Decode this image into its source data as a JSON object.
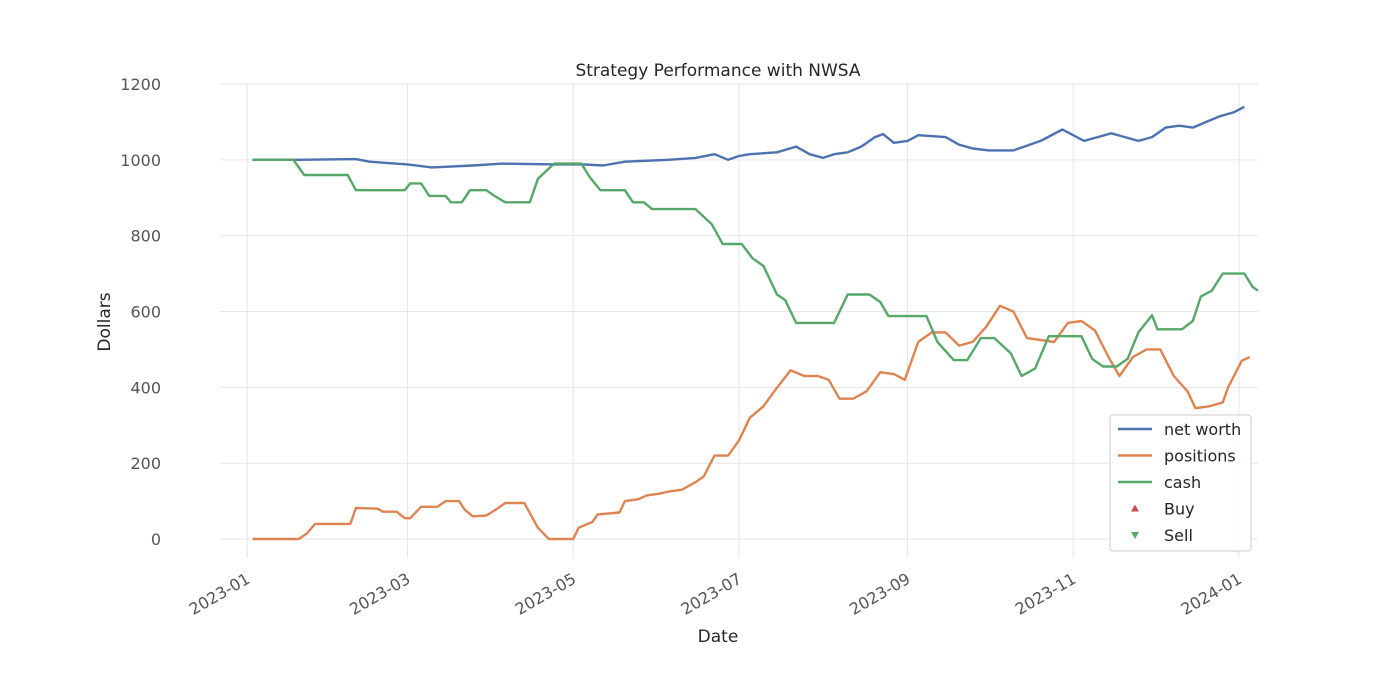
{
  "chart_data": {
    "type": "line",
    "title": "Strategy Performance with NWSA",
    "xlabel": "Date",
    "ylabel": "Dollars",
    "ylim": [
      -50,
      1200
    ],
    "xlim": [
      "2022-12-22",
      "2024-01-08"
    ],
    "yticks": [
      "0",
      "200",
      "400",
      "600",
      "800",
      "1000",
      "1200"
    ],
    "xticks": [
      "2023-01",
      "2023-03",
      "2023-05",
      "2023-07",
      "2023-09",
      "2023-11",
      "2024-01"
    ],
    "grid": true,
    "legend_position": "lower-right",
    "series": [
      {
        "name": "net worth",
        "color": "#4c72b0",
        "points": [
          [
            "2023-01-03",
            1000
          ],
          [
            "2023-01-20",
            1000
          ],
          [
            "2023-02-10",
            1002
          ],
          [
            "2023-02-15",
            995
          ],
          [
            "2023-03-01",
            988
          ],
          [
            "2023-03-10",
            980
          ],
          [
            "2023-03-25",
            985
          ],
          [
            "2023-04-05",
            990
          ],
          [
            "2023-04-25",
            988
          ],
          [
            "2023-05-05",
            988
          ],
          [
            "2023-05-12",
            985
          ],
          [
            "2023-05-20",
            995
          ],
          [
            "2023-06-05",
            1000
          ],
          [
            "2023-06-15",
            1005
          ],
          [
            "2023-06-22",
            1015
          ],
          [
            "2023-06-27",
            1000
          ],
          [
            "2023-07-01",
            1010
          ],
          [
            "2023-07-05",
            1015
          ],
          [
            "2023-07-15",
            1020
          ],
          [
            "2023-07-22",
            1035
          ],
          [
            "2023-07-27",
            1015
          ],
          [
            "2023-08-01",
            1005
          ],
          [
            "2023-08-05",
            1015
          ],
          [
            "2023-08-10",
            1020
          ],
          [
            "2023-08-15",
            1035
          ],
          [
            "2023-08-20",
            1060
          ],
          [
            "2023-08-23",
            1068
          ],
          [
            "2023-08-27",
            1045
          ],
          [
            "2023-09-01",
            1050
          ],
          [
            "2023-09-05",
            1065
          ],
          [
            "2023-09-15",
            1060
          ],
          [
            "2023-09-20",
            1040
          ],
          [
            "2023-09-25",
            1030
          ],
          [
            "2023-10-01",
            1025
          ],
          [
            "2023-10-10",
            1025
          ],
          [
            "2023-10-20",
            1050
          ],
          [
            "2023-10-28",
            1080
          ],
          [
            "2023-11-05",
            1050
          ],
          [
            "2023-11-10",
            1060
          ],
          [
            "2023-11-15",
            1070
          ],
          [
            "2023-11-20",
            1060
          ],
          [
            "2023-11-25",
            1050
          ],
          [
            "2023-11-30",
            1060
          ],
          [
            "2023-12-05",
            1085
          ],
          [
            "2023-12-10",
            1090
          ],
          [
            "2023-12-15",
            1085
          ],
          [
            "2023-12-20",
            1100
          ],
          [
            "2023-12-25",
            1115
          ],
          [
            "2023-12-30",
            1125
          ],
          [
            "2024-01-03",
            1140
          ]
        ]
      },
      {
        "name": "positions",
        "color": "#dd8452",
        "points": [
          [
            "2023-01-03",
            0
          ],
          [
            "2023-01-20",
            0
          ],
          [
            "2023-01-23",
            15
          ],
          [
            "2023-01-26",
            40
          ],
          [
            "2023-02-08",
            40
          ],
          [
            "2023-02-10",
            82
          ],
          [
            "2023-02-18",
            80
          ],
          [
            "2023-02-20",
            72
          ],
          [
            "2023-02-25",
            72
          ],
          [
            "2023-02-28",
            55
          ],
          [
            "2023-03-02",
            55
          ],
          [
            "2023-03-06",
            85
          ],
          [
            "2023-03-12",
            85
          ],
          [
            "2023-03-15",
            100
          ],
          [
            "2023-03-20",
            100
          ],
          [
            "2023-03-22",
            78
          ],
          [
            "2023-03-25",
            60
          ],
          [
            "2023-03-30",
            62
          ],
          [
            "2023-04-03",
            80
          ],
          [
            "2023-04-06",
            95
          ],
          [
            "2023-04-10",
            95
          ],
          [
            "2023-04-13",
            95
          ],
          [
            "2023-04-18",
            30
          ],
          [
            "2023-04-22",
            0
          ],
          [
            "2023-05-01",
            0
          ],
          [
            "2023-05-03",
            30
          ],
          [
            "2023-05-08",
            45
          ],
          [
            "2023-05-10",
            65
          ],
          [
            "2023-05-18",
            70
          ],
          [
            "2023-05-20",
            100
          ],
          [
            "2023-05-25",
            105
          ],
          [
            "2023-05-28",
            115
          ],
          [
            "2023-06-02",
            120
          ],
          [
            "2023-06-05",
            125
          ],
          [
            "2023-06-10",
            130
          ],
          [
            "2023-06-15",
            150
          ],
          [
            "2023-06-18",
            165
          ],
          [
            "2023-06-22",
            220
          ],
          [
            "2023-06-27",
            220
          ],
          [
            "2023-07-01",
            260
          ],
          [
            "2023-07-05",
            320
          ],
          [
            "2023-07-10",
            350
          ],
          [
            "2023-07-14",
            390
          ],
          [
            "2023-07-20",
            445
          ],
          [
            "2023-07-25",
            430
          ],
          [
            "2023-07-30",
            430
          ],
          [
            "2023-08-03",
            420
          ],
          [
            "2023-08-07",
            370
          ],
          [
            "2023-08-12",
            370
          ],
          [
            "2023-08-17",
            390
          ],
          [
            "2023-08-22",
            440
          ],
          [
            "2023-08-27",
            435
          ],
          [
            "2023-08-31",
            420
          ],
          [
            "2023-09-05",
            520
          ],
          [
            "2023-09-10",
            545
          ],
          [
            "2023-09-15",
            545
          ],
          [
            "2023-09-20",
            510
          ],
          [
            "2023-09-25",
            520
          ],
          [
            "2023-09-30",
            560
          ],
          [
            "2023-10-05",
            615
          ],
          [
            "2023-10-10",
            600
          ],
          [
            "2023-10-15",
            530
          ],
          [
            "2023-10-20",
            525
          ],
          [
            "2023-10-25",
            520
          ],
          [
            "2023-10-30",
            570
          ],
          [
            "2023-11-04",
            575
          ],
          [
            "2023-11-09",
            550
          ],
          [
            "2023-11-14",
            480
          ],
          [
            "2023-11-18",
            430
          ],
          [
            "2023-11-23",
            480
          ],
          [
            "2023-11-28",
            500
          ],
          [
            "2023-12-03",
            500
          ],
          [
            "2023-12-08",
            430
          ],
          [
            "2023-12-13",
            390
          ],
          [
            "2023-12-16",
            345
          ],
          [
            "2023-12-21",
            350
          ],
          [
            "2023-12-26",
            360
          ],
          [
            "2023-12-28",
            400
          ],
          [
            "2024-01-02",
            470
          ],
          [
            "2024-01-05",
            480
          ]
        ]
      },
      {
        "name": "cash",
        "color": "#55a868",
        "points": [
          [
            "2023-01-03",
            1000
          ],
          [
            "2023-01-18",
            1000
          ],
          [
            "2023-01-22",
            960
          ],
          [
            "2023-02-07",
            960
          ],
          [
            "2023-02-10",
            920
          ],
          [
            "2023-02-28",
            920
          ],
          [
            "2023-03-02",
            938
          ],
          [
            "2023-03-06",
            938
          ],
          [
            "2023-03-09",
            905
          ],
          [
            "2023-03-15",
            905
          ],
          [
            "2023-03-17",
            888
          ],
          [
            "2023-03-21",
            888
          ],
          [
            "2023-03-24",
            920
          ],
          [
            "2023-03-30",
            920
          ],
          [
            "2023-04-02",
            905
          ],
          [
            "2023-04-06",
            888
          ],
          [
            "2023-04-15",
            888
          ],
          [
            "2023-04-18",
            950
          ],
          [
            "2023-04-24",
            990
          ],
          [
            "2023-05-04",
            990
          ],
          [
            "2023-05-07",
            955
          ],
          [
            "2023-05-11",
            920
          ],
          [
            "2023-05-20",
            920
          ],
          [
            "2023-05-23",
            888
          ],
          [
            "2023-05-27",
            888
          ],
          [
            "2023-05-30",
            870
          ],
          [
            "2023-06-15",
            870
          ],
          [
            "2023-06-18",
            850
          ],
          [
            "2023-06-21",
            830
          ],
          [
            "2023-06-25",
            778
          ],
          [
            "2023-07-02",
            778
          ],
          [
            "2023-07-06",
            740
          ],
          [
            "2023-07-10",
            720
          ],
          [
            "2023-07-15",
            645
          ],
          [
            "2023-07-18",
            630
          ],
          [
            "2023-07-22",
            570
          ],
          [
            "2023-08-05",
            570
          ],
          [
            "2023-08-10",
            645
          ],
          [
            "2023-08-18",
            645
          ],
          [
            "2023-08-22",
            625
          ],
          [
            "2023-08-25",
            588
          ],
          [
            "2023-09-08",
            588
          ],
          [
            "2023-09-12",
            520
          ],
          [
            "2023-09-18",
            472
          ],
          [
            "2023-09-23",
            472
          ],
          [
            "2023-09-28",
            530
          ],
          [
            "2023-10-03",
            530
          ],
          [
            "2023-10-09",
            490
          ],
          [
            "2023-10-13",
            430
          ],
          [
            "2023-10-18",
            450
          ],
          [
            "2023-10-23",
            535
          ],
          [
            "2023-11-04",
            535
          ],
          [
            "2023-11-08",
            475
          ],
          [
            "2023-11-12",
            455
          ],
          [
            "2023-11-17",
            455
          ],
          [
            "2023-11-21",
            475
          ],
          [
            "2023-11-25",
            545
          ],
          [
            "2023-11-30",
            590
          ],
          [
            "2023-12-02",
            553
          ],
          [
            "2023-12-11",
            553
          ],
          [
            "2023-12-15",
            575
          ],
          [
            "2023-12-18",
            640
          ],
          [
            "2023-12-22",
            655
          ],
          [
            "2023-12-26",
            700
          ],
          [
            "2024-01-03",
            700
          ],
          [
            "2024-01-06",
            665
          ],
          [
            "2024-01-08",
            655
          ]
        ]
      }
    ],
    "markers": [
      {
        "name": "Buy",
        "color": "#c44e52",
        "symbol": "triangle-up"
      },
      {
        "name": "Sell",
        "color": "#55a868",
        "symbol": "triangle-down"
      }
    ]
  }
}
